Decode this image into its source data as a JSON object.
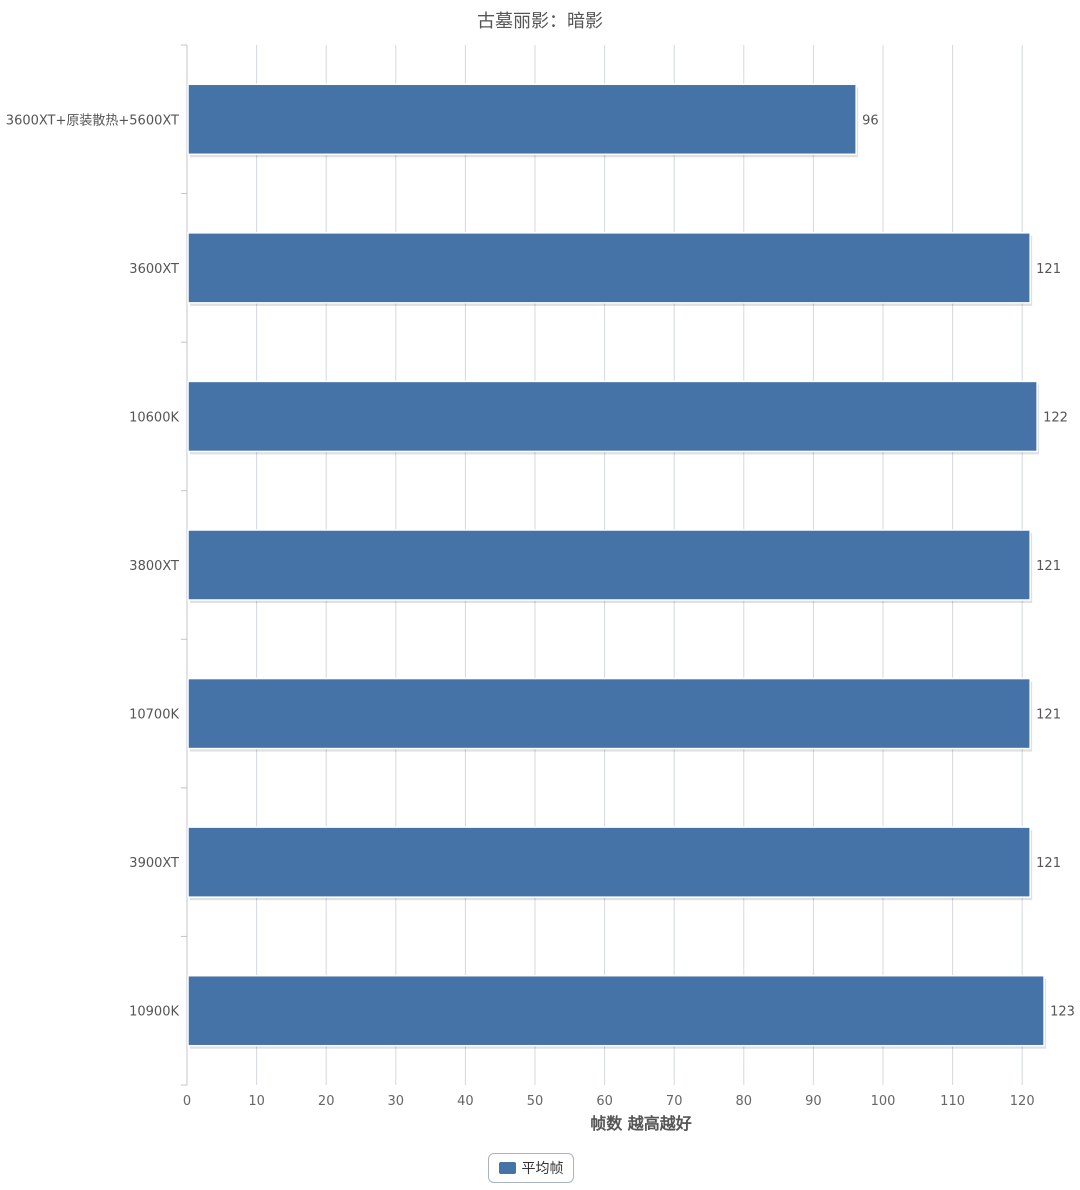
{
  "chart_data": {
    "type": "bar",
    "orientation": "horizontal",
    "title": "古墓丽影：暗影",
    "categories": [
      "3600XT+原装散热+5600XT",
      "3600XT",
      "10600K",
      "3800XT",
      "10700K",
      "3900XT",
      "10900K"
    ],
    "series": [
      {
        "name": "平均帧",
        "values": [
          96,
          121,
          122,
          121,
          121,
          121,
          123
        ]
      }
    ],
    "xlabel": "帧数 越高越好",
    "ylabel": "",
    "xlim": [
      0,
      125
    ],
    "x_ticks": [
      0,
      10,
      20,
      30,
      40,
      50,
      60,
      70,
      80,
      90,
      100,
      110,
      120
    ],
    "grid": "vertical",
    "legend_position": "bottom-center",
    "data_labels": true,
    "bar_color": "#4572a7"
  }
}
